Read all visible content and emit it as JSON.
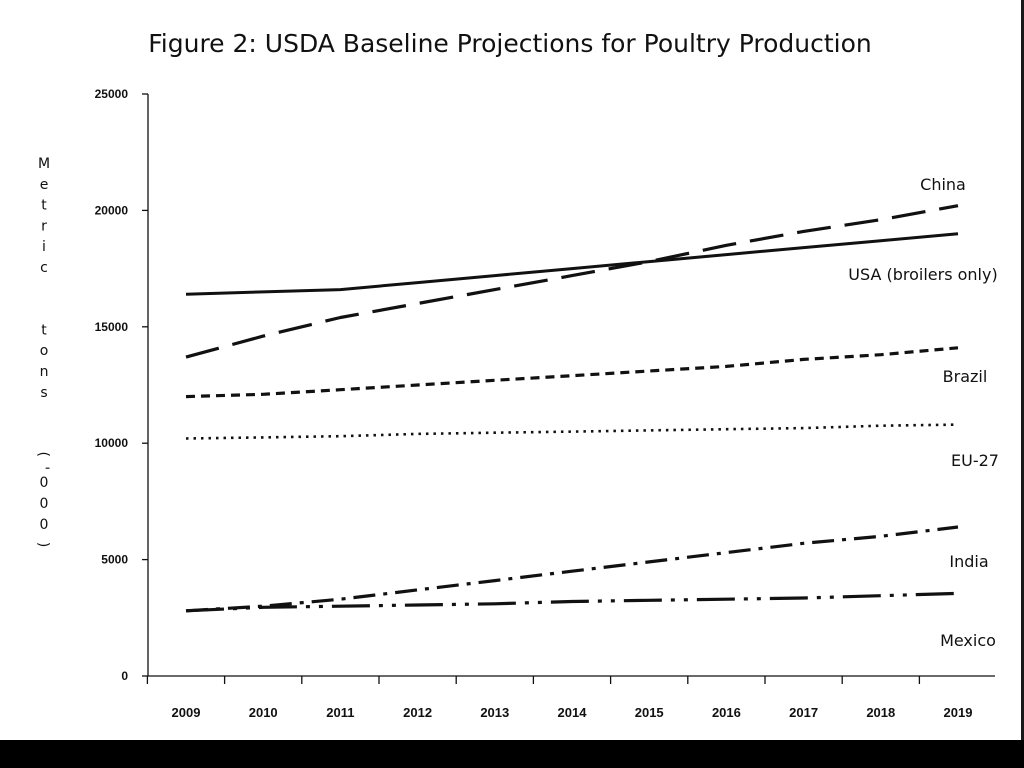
{
  "chart_data": {
    "type": "line",
    "title": "Figure 2: USDA Baseline Projections for Poultry Production",
    "ylabel": "Metric tons ('000)",
    "xlabel": "",
    "ylim": [
      0,
      25000
    ],
    "yticks": [
      "0",
      "5000",
      "10000",
      "15000",
      "20000",
      "25000"
    ],
    "x": [
      "2009",
      "2010",
      "2011",
      "2012",
      "2013",
      "2014",
      "2015",
      "2016",
      "2017",
      "2018",
      "2019"
    ],
    "grid": false,
    "legend": "inline labels at right end of lines",
    "series": [
      {
        "name": "China",
        "style": "long-dash",
        "values": [
          13700,
          14600,
          15400,
          16000,
          16600,
          17200,
          17800,
          18500,
          19100,
          19600,
          20200
        ]
      },
      {
        "name": "USA (broilers only)",
        "style": "solid",
        "values": [
          16400,
          16500,
          16600,
          16900,
          17200,
          17500,
          17800,
          18100,
          18400,
          18700,
          19000
        ]
      },
      {
        "name": "Brazil",
        "style": "short-dash",
        "values": [
          12000,
          12100,
          12300,
          12500,
          12700,
          12900,
          13100,
          13300,
          13600,
          13800,
          14100
        ]
      },
      {
        "name": "EU-27",
        "style": "dotted",
        "values": [
          10200,
          10250,
          10300,
          10400,
          10450,
          10500,
          10550,
          10600,
          10650,
          10750,
          10800
        ]
      },
      {
        "name": "India",
        "style": "dash-dot",
        "values": [
          2800,
          3000,
          3300,
          3700,
          4100,
          4500,
          4900,
          5300,
          5700,
          6000,
          6400
        ]
      },
      {
        "name": "Mexico",
        "style": "long-dash-double-dot",
        "values": [
          2800,
          2950,
          3000,
          3050,
          3100,
          3200,
          3250,
          3300,
          3350,
          3450,
          3550
        ]
      }
    ]
  }
}
